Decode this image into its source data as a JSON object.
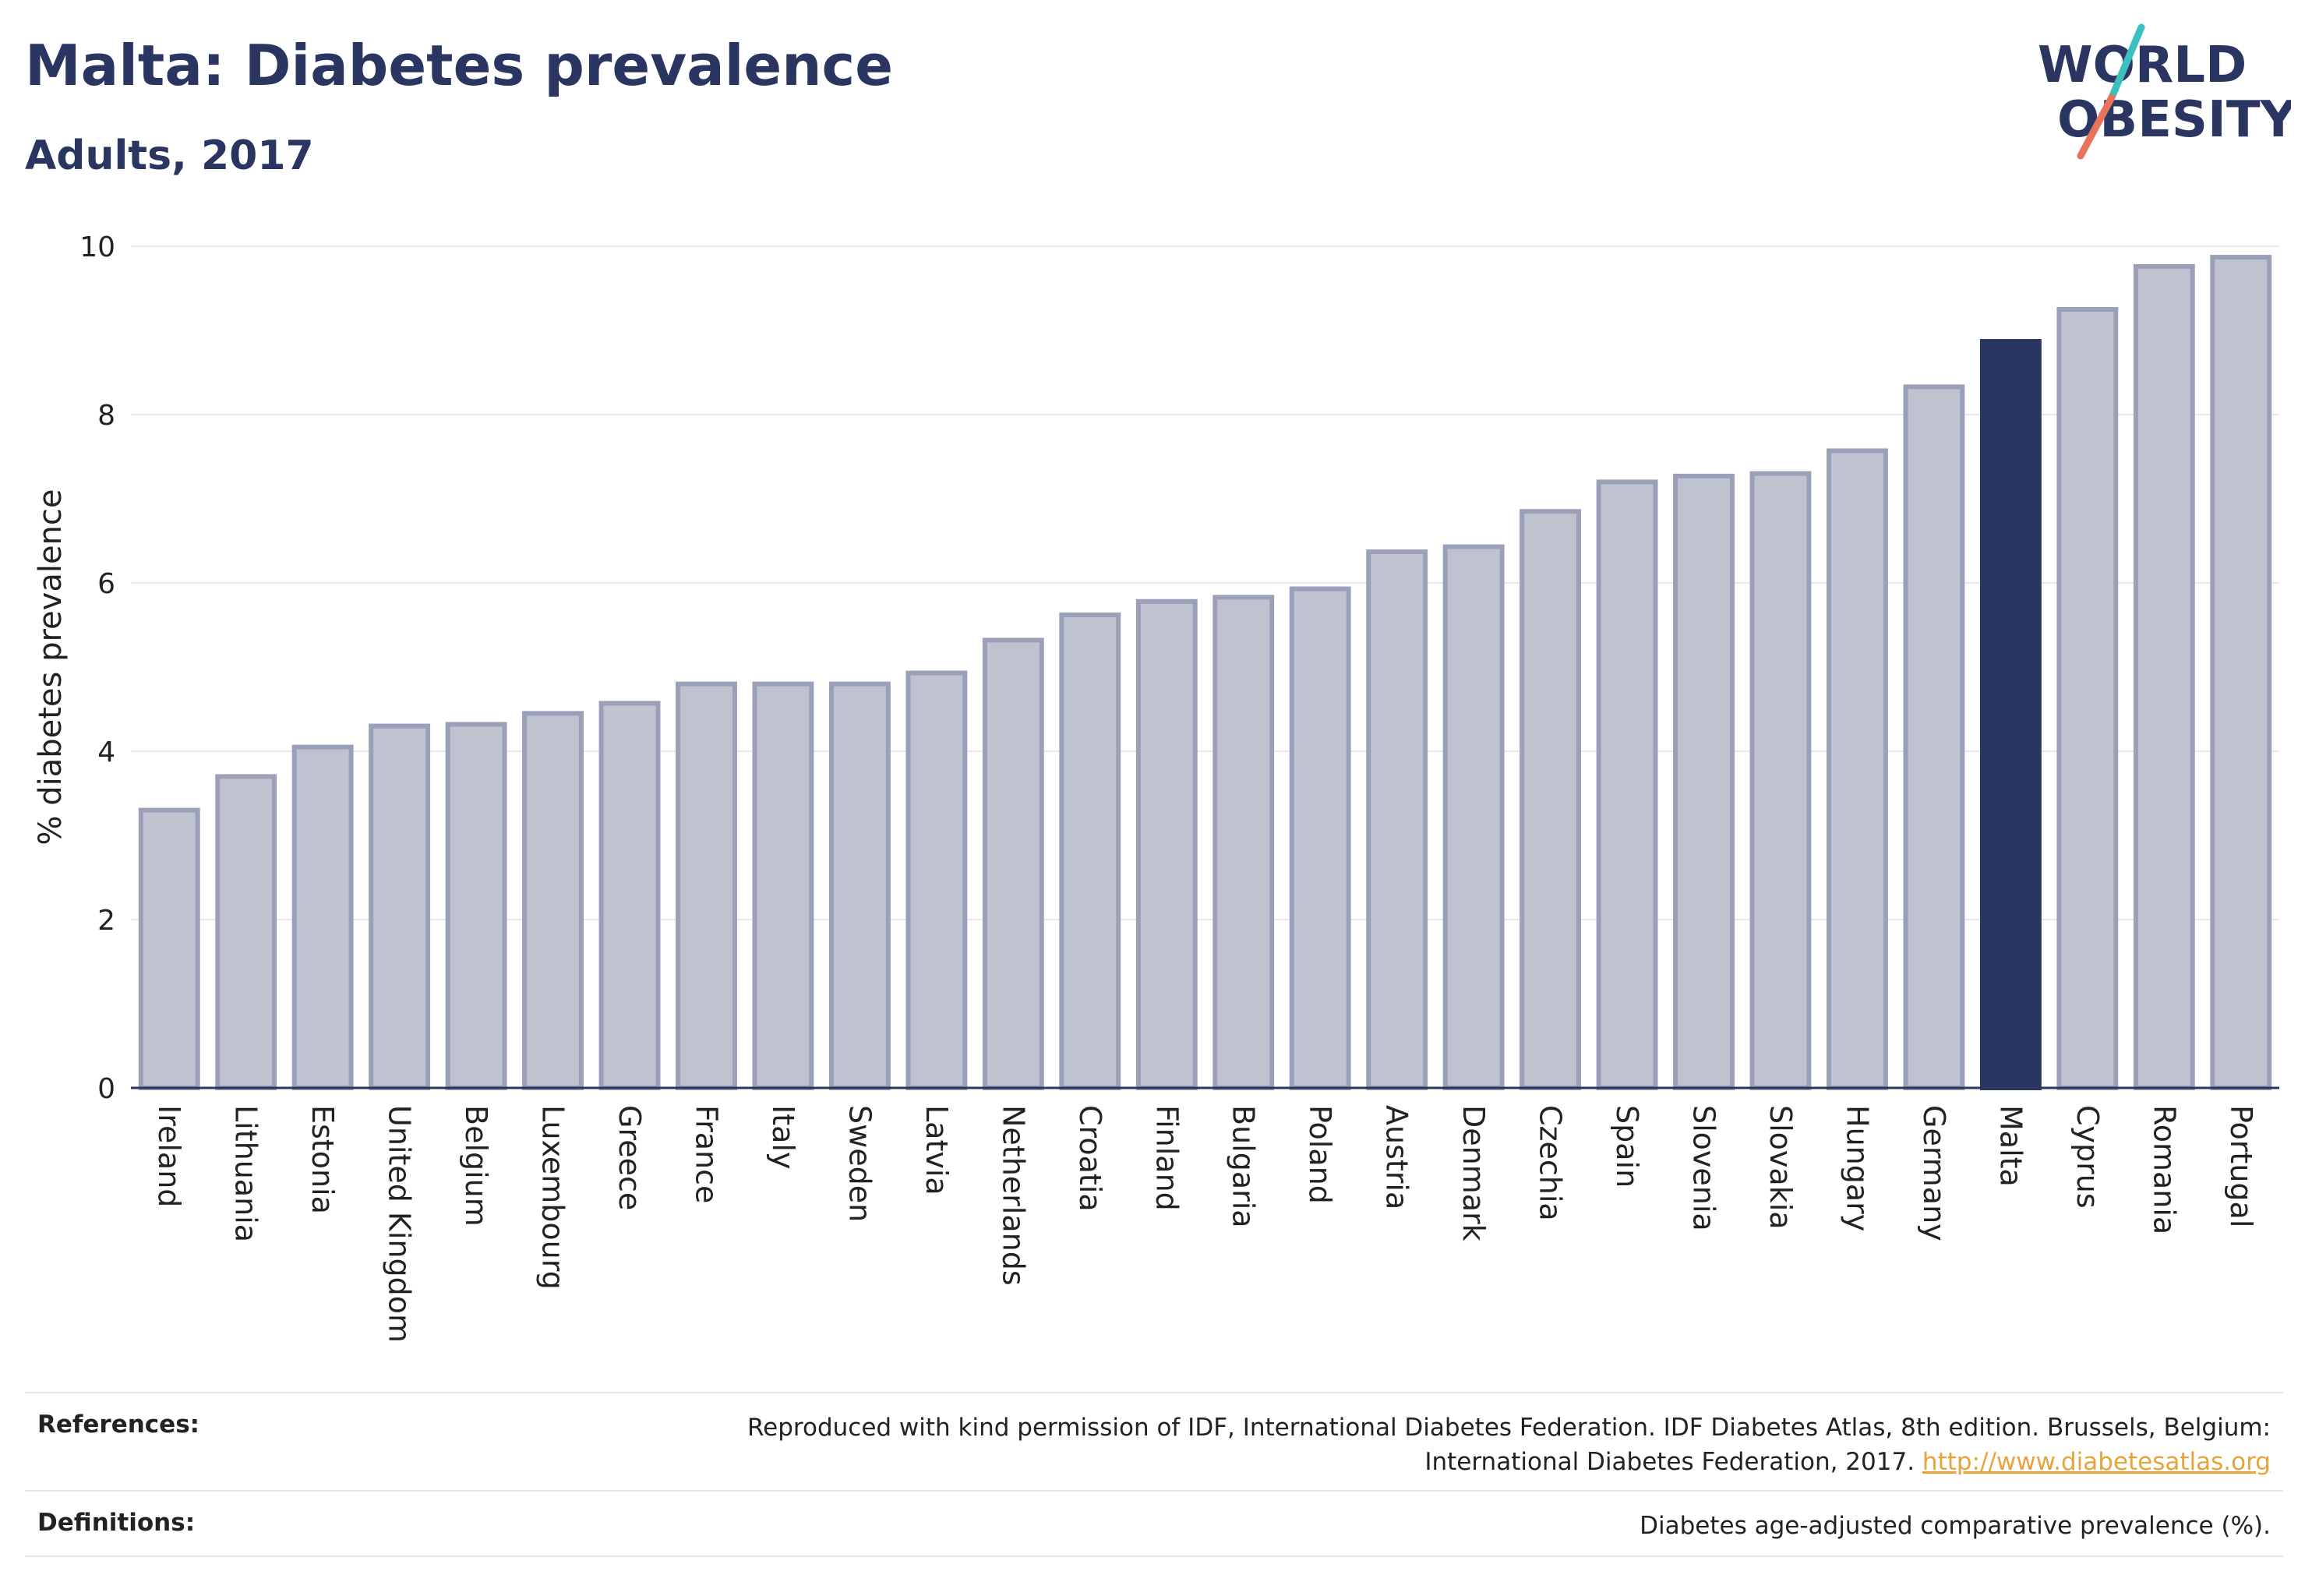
{
  "header": {
    "title": "Malta: Diabetes prevalence",
    "subtitle": "Adults, 2017"
  },
  "logo": {
    "line1": "WORLD",
    "line2": "OBESITY"
  },
  "colors": {
    "highlight": "#2b3561",
    "bar_fill": "#bfc3cf",
    "bar_stroke": "#9aa0b8",
    "grid": "#e8e8ee",
    "text": "#2b3561",
    "link": "#e8a33b",
    "logo_teal": "#3bbfc0",
    "logo_coral": "#e8735b"
  },
  "chart_data": {
    "type": "bar",
    "ylabel": "% diabetes prevalence",
    "xlabel": "",
    "ylim": [
      0,
      10
    ],
    "yticks": [
      0,
      2,
      4,
      6,
      8,
      10
    ],
    "grid": true,
    "highlight": "Malta",
    "categories": [
      "Ireland",
      "Lithuania",
      "Estonia",
      "United Kingdom",
      "Belgium",
      "Luxembourg",
      "Greece",
      "France",
      "Italy",
      "Sweden",
      "Latvia",
      "Netherlands",
      "Croatia",
      "Finland",
      "Bulgaria",
      "Poland",
      "Austria",
      "Denmark",
      "Czechia",
      "Spain",
      "Slovenia",
      "Slovakia",
      "Hungary",
      "Germany",
      "Malta",
      "Cyprus",
      "Romania",
      "Portugal"
    ],
    "values": [
      3.3,
      3.7,
      4.05,
      4.3,
      4.32,
      4.45,
      4.57,
      4.8,
      4.8,
      4.8,
      4.93,
      5.32,
      5.62,
      5.78,
      5.83,
      5.93,
      6.37,
      6.43,
      6.85,
      7.2,
      7.27,
      7.3,
      7.57,
      8.33,
      8.87,
      9.25,
      9.76,
      9.87
    ]
  },
  "footer": {
    "references_label": "References:",
    "references_text": "Reproduced with kind permission of IDF, International Diabetes Federation. IDF Diabetes Atlas, 8th edition. Brussels, Belgium:",
    "references_text2": "International Diabetes Federation, 2017.",
    "references_link": "http://www.diabetesatlas.org",
    "definitions_label": "Definitions:",
    "definitions_text": "Diabetes age-adjusted comparative prevalence (%)."
  }
}
